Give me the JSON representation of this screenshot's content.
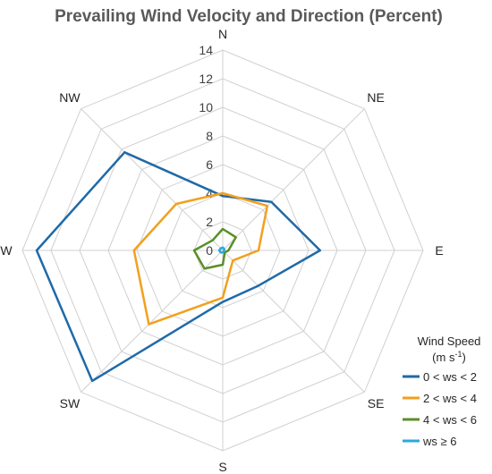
{
  "chart_data": {
    "type": "radar",
    "title": "Prevailing Wind Velocity and Direction (Percent)",
    "categories": [
      "N",
      "NE",
      "E",
      "SE",
      "S",
      "SW",
      "W",
      "NW"
    ],
    "rlim": [
      0,
      14
    ],
    "ticks": [
      "0",
      "2",
      "4",
      "6",
      "8",
      "10",
      "12",
      "14"
    ],
    "grid": true,
    "legend": {
      "title": "Wind Speed",
      "unit_base": "(m s",
      "unit_sup": "-1",
      "unit_close": ")",
      "placement": "bottom-right"
    },
    "series": [
      {
        "name": "0 < ws < 2",
        "color": "#1f6aa8",
        "values": [
          3.8,
          4.8,
          6.8,
          3.5,
          3.6,
          12.9,
          13.0,
          9.7
        ]
      },
      {
        "name": "2 < ws < 4",
        "color": "#f2a01e",
        "values": [
          4.0,
          4.4,
          2.5,
          1.0,
          3.3,
          7.3,
          6.2,
          4.6
        ]
      },
      {
        "name": "4 < ws < 6",
        "color": "#5a8f29",
        "values": [
          1.5,
          1.3,
          0.4,
          0.2,
          1.0,
          1.8,
          2.0,
          1.0
        ]
      },
      {
        "name": "ws ≥ 6",
        "color": "#2aa9e0",
        "values": [
          0.2,
          0.15,
          0.1,
          0.1,
          0.15,
          0.2,
          0.25,
          0.2
        ]
      }
    ]
  }
}
